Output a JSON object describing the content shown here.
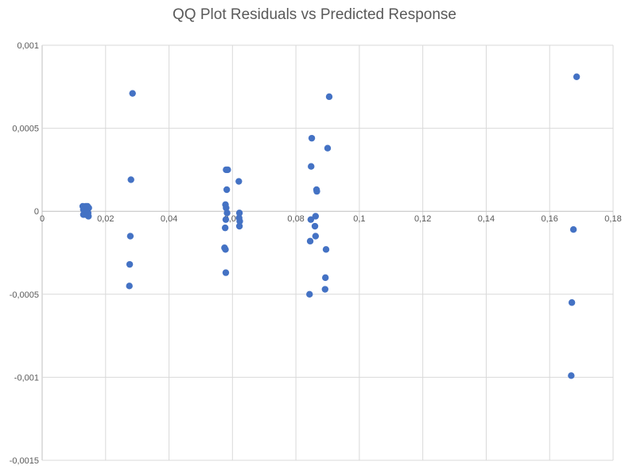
{
  "chart_data": {
    "type": "scatter",
    "title": "QQ Plot Residuals vs Predicted Response",
    "xlabel": "",
    "ylabel": "",
    "xlim": [
      0,
      0.18
    ],
    "ylim": [
      -0.0015,
      0.001
    ],
    "grid": true,
    "legend": "none",
    "x_ticks": [
      0,
      0.02,
      0.04,
      0.06,
      0.08,
      0.1,
      0.12,
      0.14,
      0.16,
      0.18
    ],
    "x_tick_labels": [
      "0",
      "0,02",
      "0,04",
      "0,06",
      "0,08",
      "0,1",
      "0,12",
      "0,14",
      "0,16",
      "0,18"
    ],
    "y_ticks": [
      0.001,
      0.0005,
      0,
      -0.0005,
      -0.001,
      -0.0015
    ],
    "y_tick_labels": [
      "0,001",
      "0,0005",
      "0",
      "-0,0005",
      "-0,001",
      "-0,0015"
    ],
    "color": "#4472c4",
    "series": [
      {
        "name": "Residuals",
        "points": [
          [
            0.0128,
            3e-05
          ],
          [
            0.013,
            1e-05
          ],
          [
            0.0133,
            -1e-05
          ],
          [
            0.0135,
            2e-05
          ],
          [
            0.0137,
            -2e-05
          ],
          [
            0.014,
            0.0
          ],
          [
            0.0142,
            1e-05
          ],
          [
            0.0145,
            -1e-05
          ],
          [
            0.0147,
            2e-05
          ],
          [
            0.013,
            -2e-05
          ],
          [
            0.0138,
            3e-05
          ],
          [
            0.0146,
            -3e-05
          ],
          [
            0.0134,
            0.0
          ],
          [
            0.0143,
            3e-05
          ],
          [
            0.0141,
            -2e-05
          ],
          [
            0.0285,
            0.00071
          ],
          [
            0.028,
            0.00019
          ],
          [
            0.0278,
            -0.00015
          ],
          [
            0.0276,
            -0.00032
          ],
          [
            0.0275,
            -0.00045
          ],
          [
            0.058,
            0.00025
          ],
          [
            0.0585,
            0.00025
          ],
          [
            0.0582,
            0.00013
          ],
          [
            0.0578,
            4e-05
          ],
          [
            0.058,
            2e-05
          ],
          [
            0.0583,
            -1e-05
          ],
          [
            0.0579,
            -5e-05
          ],
          [
            0.0577,
            -0.0001
          ],
          [
            0.0575,
            -0.00022
          ],
          [
            0.0578,
            -0.00023
          ],
          [
            0.0579,
            -0.00037
          ],
          [
            0.062,
            0.00018
          ],
          [
            0.0622,
            -1e-05
          ],
          [
            0.0621,
            -4e-05
          ],
          [
            0.0623,
            -6e-05
          ],
          [
            0.0622,
            -9e-05
          ],
          [
            0.085,
            0.00044
          ],
          [
            0.0848,
            0.00027
          ],
          [
            0.0865,
            0.00013
          ],
          [
            0.0866,
            0.00012
          ],
          [
            0.0862,
            -3e-05
          ],
          [
            0.0847,
            -5e-05
          ],
          [
            0.086,
            -9e-05
          ],
          [
            0.0862,
            -0.00015
          ],
          [
            0.0845,
            -0.00018
          ],
          [
            0.0843,
            -0.0005
          ],
          [
            0.0905,
            0.00069
          ],
          [
            0.09,
            0.00038
          ],
          [
            0.0895,
            -0.00023
          ],
          [
            0.0893,
            -0.0004
          ],
          [
            0.0892,
            -0.00047
          ],
          [
            0.1685,
            0.00081
          ],
          [
            0.1675,
            -0.00011
          ],
          [
            0.167,
            -0.00055
          ],
          [
            0.1668,
            -0.00099
          ]
        ]
      }
    ]
  }
}
